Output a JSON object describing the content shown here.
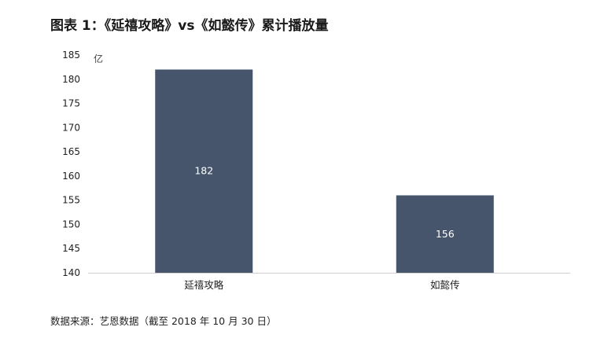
{
  "title": "图表 1：《延禧攻略》vs《如懿传》累计播放量",
  "source": "数据来源：艺恩数据（截至 2018 年 10 月 30 日）",
  "chart_data": {
    "type": "bar",
    "categories": [
      "延禧攻略",
      "如懿传"
    ],
    "values": [
      182,
      156
    ],
    "data_labels": [
      "182",
      "156"
    ],
    "y_unit": "亿",
    "ylim": [
      140,
      185
    ],
    "yticks": [
      140,
      145,
      150,
      155,
      160,
      165,
      170,
      175,
      180,
      185
    ],
    "bar_color": "#46556b",
    "grid": false,
    "legend": "none"
  }
}
